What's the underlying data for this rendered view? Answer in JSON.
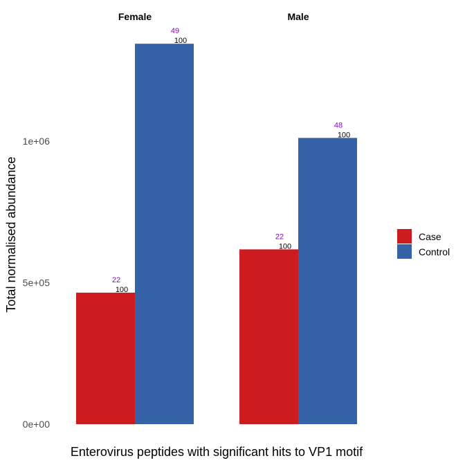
{
  "chart_data": {
    "type": "bar",
    "facets": [
      {
        "title": "Female",
        "bars": [
          {
            "group": "Case",
            "value": 465000,
            "label_top": "22",
            "label_bottom": "100"
          },
          {
            "group": "Control",
            "value": 1345000,
            "label_top": "49",
            "label_bottom": "100"
          }
        ]
      },
      {
        "title": "Male",
        "bars": [
          {
            "group": "Case",
            "value": 618000,
            "label_top": "22",
            "label_bottom": "100"
          },
          {
            "group": "Control",
            "value": 1012000,
            "label_top": "48",
            "label_bottom": "100"
          }
        ]
      }
    ],
    "xlabel": "Enterovirus peptides with significant hits to VP1 motif",
    "ylabel": "Total normalised abundance",
    "ylim": [
      0,
      1480000
    ],
    "yticks": [
      0,
      500000,
      1000000
    ],
    "ytick_labels": [
      "0e+00",
      "5e+05",
      "1e+06"
    ],
    "legend": {
      "position": "right",
      "entries": [
        {
          "name": "Case",
          "color": "#cc1c20"
        },
        {
          "name": "Control",
          "color": "#3663a8"
        }
      ]
    },
    "colors": {
      "Case": "#cc1c20",
      "Control": "#3663a8",
      "label_top": "#9400d3",
      "label_bottom": "#000000"
    },
    "grid": false
  }
}
